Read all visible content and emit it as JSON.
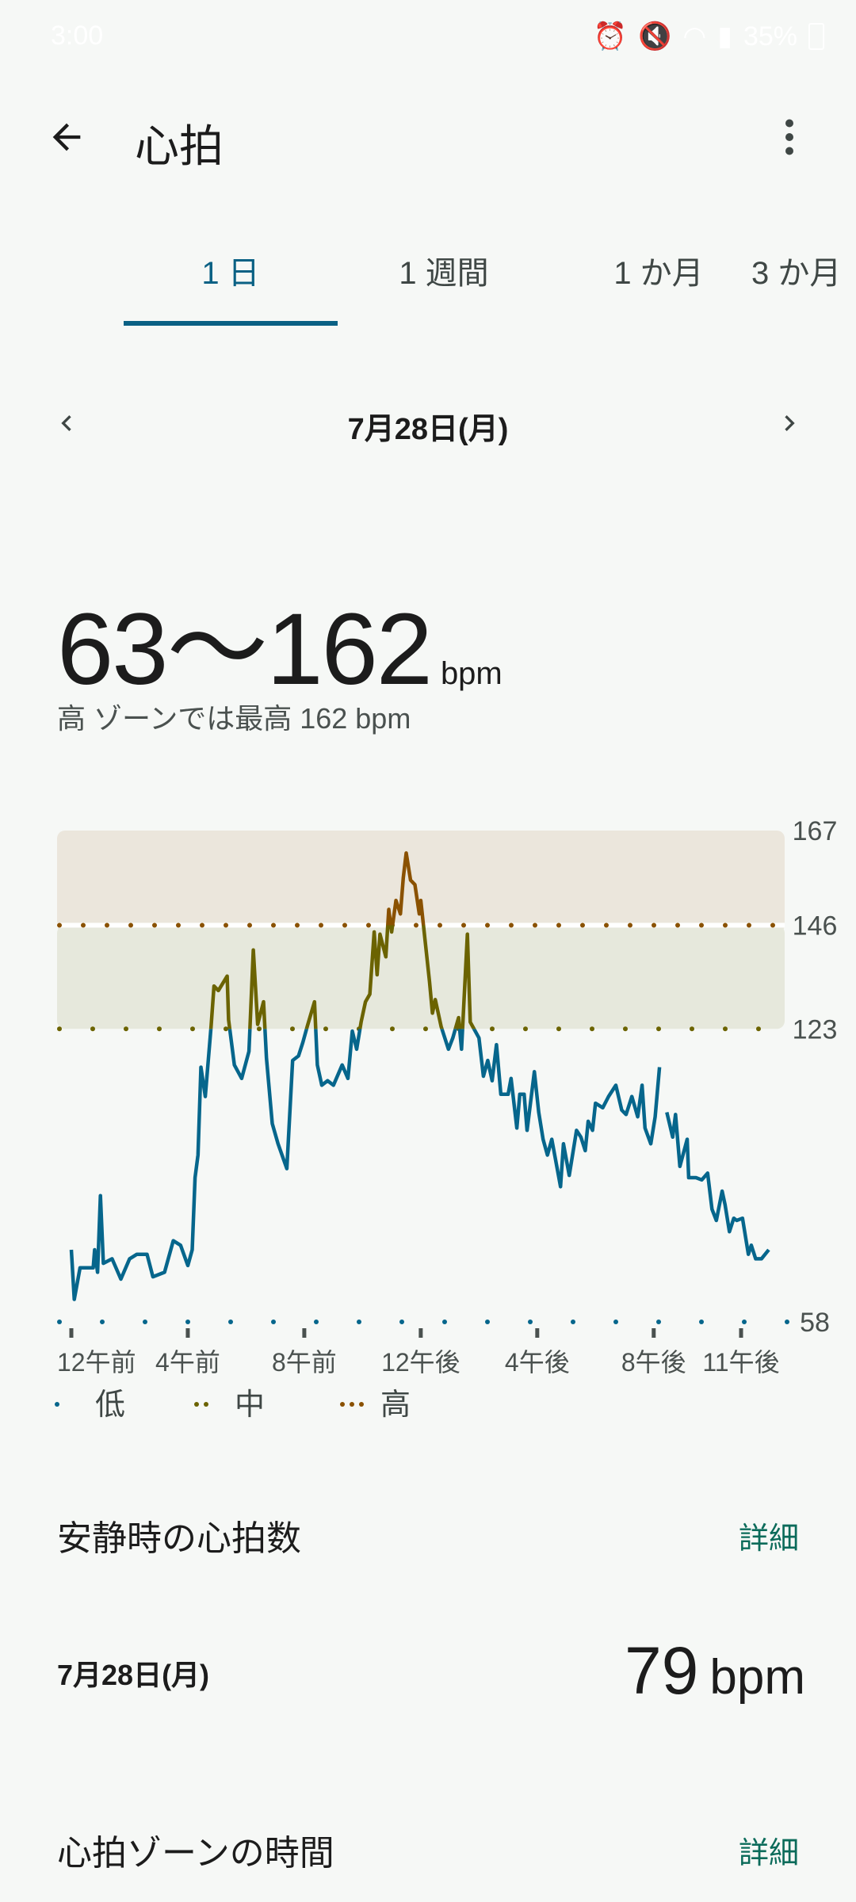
{
  "status_bar": {
    "time": "3:00",
    "battery": "35%"
  },
  "header": {
    "title": "心拍",
    "back_icon": "arrow-left-icon",
    "menu_icon": "more-vert-icon"
  },
  "tabs": [
    {
      "label": "1 日",
      "active": true
    },
    {
      "label": "1 週間",
      "active": false
    },
    {
      "label": "1 か月",
      "active": false
    },
    {
      "label": "3 か月",
      "active": false
    }
  ],
  "date_nav": {
    "date": "7月28日(月)",
    "prev_icon": "chevron-left-icon",
    "next_icon": "chevron-right-icon"
  },
  "summary": {
    "range": "63〜162",
    "unit": "bpm",
    "subtitle": "高 ゾーンでは最高 162 bpm"
  },
  "chart_data": {
    "type": "line",
    "ylim": [
      58,
      167
    ],
    "y_ticks": [
      "167",
      "146",
      "123",
      "58"
    ],
    "x_ticks": [
      {
        "hour": 0,
        "label": "12午前"
      },
      {
        "hour": 4,
        "label": "4午前"
      },
      {
        "hour": 8,
        "label": "8午前"
      },
      {
        "hour": 12,
        "label": "12午後"
      },
      {
        "hour": 16,
        "label": "4午後"
      },
      {
        "hour": 20,
        "label": "8午後"
      },
      {
        "hour": 23,
        "label": "11午後"
      }
    ],
    "xlim": [
      0,
      24
    ],
    "zones": [
      {
        "name": "低",
        "from": 58,
        "to": 123,
        "color": "#06668c",
        "dots": 1
      },
      {
        "name": "中",
        "from": 123,
        "to": 146,
        "color": "#6b6300",
        "dots": 2,
        "band": "#e6e8dc"
      },
      {
        "name": "高",
        "from": 146,
        "to": 167,
        "color": "#8a5100",
        "dots": 3,
        "band": "#ebe6dc"
      }
    ],
    "legend_placement": "bottom-left",
    "series": [
      {
        "segment": [
          [
            0,
            74
          ],
          [
            0.1,
            63
          ],
          [
            0.3,
            70
          ],
          [
            0.75,
            70
          ],
          [
            0.8,
            74
          ],
          [
            0.9,
            69
          ],
          [
            1.0,
            86
          ],
          [
            1.1,
            71
          ],
          [
            1.4,
            72
          ],
          [
            1.7,
            67.5
          ],
          [
            2.0,
            72
          ],
          [
            2.25,
            73
          ],
          [
            2.6,
            73
          ],
          [
            2.8,
            68
          ],
          [
            3.2,
            69
          ],
          [
            3.5,
            76
          ],
          [
            3.75,
            75
          ],
          [
            4.0,
            70.5
          ],
          [
            4.15,
            74
          ],
          [
            4.25,
            90
          ],
          [
            4.35,
            95
          ],
          [
            4.45,
            114.5
          ],
          [
            4.6,
            108
          ],
          [
            4.8,
            123.5
          ],
          [
            4.9,
            132.5
          ],
          [
            5.05,
            131.5
          ],
          [
            5.35,
            134.7
          ],
          [
            5.4,
            125
          ],
          [
            5.6,
            115
          ],
          [
            5.85,
            112
          ],
          [
            6.1,
            118
          ],
          [
            6.25,
            140.5
          ],
          [
            6.4,
            124
          ],
          [
            6.6,
            129
          ],
          [
            6.7,
            116.5
          ],
          [
            6.9,
            102
          ],
          [
            7.1,
            97.5
          ],
          [
            7.4,
            92
          ],
          [
            7.6,
            116
          ],
          [
            7.8,
            117
          ],
          [
            7.95,
            120
          ],
          [
            8.1,
            123.5
          ],
          [
            8.35,
            129
          ],
          [
            8.45,
            115
          ],
          [
            8.6,
            110.5
          ],
          [
            8.8,
            111.5
          ],
          [
            9.0,
            110.5
          ],
          [
            9.3,
            115
          ],
          [
            9.5,
            112
          ],
          [
            9.65,
            122.5
          ],
          [
            9.8,
            118.5
          ],
          [
            9.95,
            124.5
          ],
          [
            10.1,
            129
          ],
          [
            10.25,
            130.7
          ],
          [
            10.4,
            144.5
          ],
          [
            10.5,
            135
          ],
          [
            10.6,
            144
          ],
          [
            10.8,
            139
          ],
          [
            10.9,
            149.5
          ],
          [
            11.0,
            144.5
          ],
          [
            11.15,
            151.5
          ],
          [
            11.3,
            148.5
          ],
          [
            11.4,
            156.5
          ],
          [
            11.5,
            162
          ],
          [
            11.65,
            156
          ],
          [
            11.8,
            155
          ],
          [
            11.95,
            148.5
          ],
          [
            12.0,
            151.5
          ],
          [
            12.3,
            133.5
          ],
          [
            12.4,
            126.5
          ],
          [
            12.5,
            129.5
          ],
          [
            12.7,
            123.5
          ],
          [
            12.95,
            118.5
          ],
          [
            13.1,
            121
          ],
          [
            13.3,
            125.5
          ],
          [
            13.4,
            118.5
          ],
          [
            13.6,
            144
          ],
          [
            13.7,
            124.5
          ],
          [
            14.0,
            121
          ],
          [
            14.15,
            112.5
          ],
          [
            14.3,
            116
          ],
          [
            14.45,
            111.5
          ],
          [
            14.6,
            119.5
          ],
          [
            14.75,
            108.5
          ],
          [
            15.0,
            108.5
          ],
          [
            15.1,
            112
          ],
          [
            15.3,
            101
          ],
          [
            15.4,
            108.5
          ],
          [
            15.55,
            108.5
          ],
          [
            15.65,
            100.5
          ],
          [
            15.9,
            113.5
          ],
          [
            16.05,
            104.5
          ],
          [
            16.2,
            98.5
          ],
          [
            16.35,
            95
          ],
          [
            16.5,
            98.5
          ],
          [
            16.8,
            88
          ],
          [
            16.9,
            97.5
          ],
          [
            17.1,
            90.5
          ],
          [
            17.35,
            100.5
          ],
          [
            17.5,
            99
          ],
          [
            17.65,
            96
          ],
          [
            17.75,
            102.5
          ],
          [
            17.9,
            100.5
          ],
          [
            18.0,
            106.5
          ],
          [
            18.25,
            105.5
          ],
          [
            18.45,
            108
          ],
          [
            18.7,
            110.5
          ],
          [
            18.9,
            105
          ],
          [
            19.05,
            104
          ],
          [
            19.25,
            108
          ],
          [
            19.45,
            103.5
          ],
          [
            19.6,
            110.5
          ],
          [
            19.7,
            101
          ],
          [
            19.9,
            97.5
          ],
          [
            20.05,
            103.5
          ],
          [
            20.2,
            114.5
          ]
        ]
      },
      {
        "segment": [
          [
            20.45,
            104.5
          ],
          [
            20.65,
            99
          ],
          [
            20.75,
            104
          ],
          [
            20.9,
            92.5
          ],
          [
            21.15,
            98.5
          ],
          [
            21.2,
            90
          ],
          [
            21.45,
            90
          ],
          [
            21.65,
            89.5
          ],
          [
            21.85,
            91
          ],
          [
            22.0,
            83
          ],
          [
            22.15,
            80.5
          ],
          [
            22.35,
            87
          ],
          [
            22.45,
            84
          ],
          [
            22.6,
            78
          ],
          [
            22.75,
            81
          ],
          [
            22.85,
            80.5
          ],
          [
            23.05,
            81
          ],
          [
            23.25,
            73
          ],
          [
            23.35,
            75
          ],
          [
            23.5,
            72
          ],
          [
            23.7,
            72
          ],
          [
            23.95,
            74
          ]
        ]
      }
    ]
  },
  "resting": {
    "title": "安静時の心拍数",
    "detail": "詳細",
    "date": "7月28日(月)",
    "value": "79",
    "unit": "bpm"
  },
  "zone_time": {
    "title": "心拍ゾーンの時間",
    "detail": "詳細"
  }
}
